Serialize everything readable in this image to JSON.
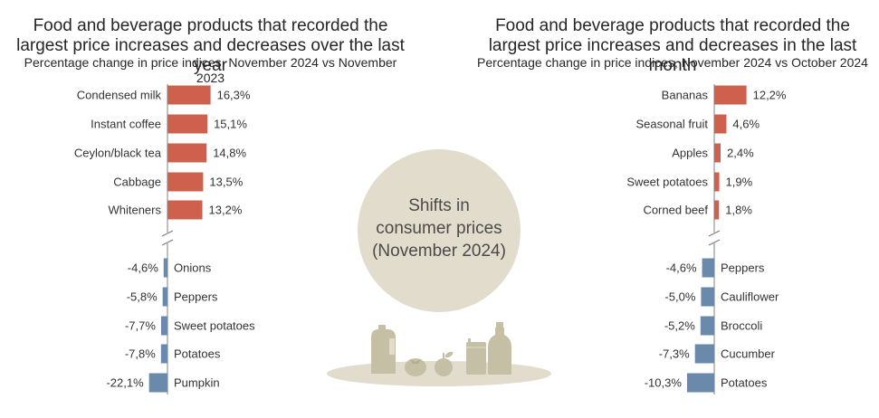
{
  "colors": {
    "increase": "#d0604e",
    "decrease": "#6b89aa",
    "circle": "#e1dccc",
    "illustration": "#c5bfa5",
    "axis": "#7f7f7f"
  },
  "center": {
    "circle_lines": [
      "Shifts in",
      "consumer prices",
      "(November 2024)"
    ],
    "icons": [
      "milk-jug-icon",
      "tomato-icon",
      "apple-icon",
      "can-icon",
      "bottle-icon"
    ]
  },
  "chart_data": [
    {
      "type": "bar",
      "orientation": "horizontal",
      "title": "Food and beverage products that recorded the largest price increases and decreases over the last year",
      "subtitle": "Percentage change in price indices, November 2024 vs November 2023",
      "axis_break": true,
      "increases": {
        "categories": [
          "Condensed milk",
          "Instant coffee",
          "Ceylon/black tea",
          "Cabbage",
          "Whiteners"
        ],
        "values": [
          16.3,
          15.1,
          14.8,
          13.5,
          13.2
        ],
        "labels": [
          "16,3%",
          "15,1%",
          "14,8%",
          "13,5%",
          "13,2%"
        ]
      },
      "decreases": {
        "categories": [
          "Onions",
          "Peppers",
          "Sweet potatoes",
          "Potatoes",
          "Pumpkin"
        ],
        "values": [
          -4.6,
          -5.8,
          -7.7,
          -7.8,
          -22.1
        ],
        "labels": [
          "-4,6%",
          "-5,8%",
          "-7,7%",
          "-7,8%",
          "-22,1%"
        ]
      }
    },
    {
      "type": "bar",
      "orientation": "horizontal",
      "title": "Food and beverage products that recorded the largest price increases and decreases in the last month",
      "subtitle": "Percentage change in price indices, November 2024 vs October 2024",
      "axis_break": true,
      "increases": {
        "categories": [
          "Bananas",
          "Seasonal fruit",
          "Apples",
          "Sweet potatoes",
          "Corned beef"
        ],
        "values": [
          12.2,
          4.6,
          2.4,
          1.9,
          1.8
        ],
        "labels": [
          "12,2%",
          "4,6%",
          "2,4%",
          "1,9%",
          "1,8%"
        ]
      },
      "decreases": {
        "categories": [
          "Peppers",
          "Cauliflower",
          "Broccoli",
          "Cucumber",
          "Potatoes"
        ],
        "values": [
          -4.6,
          -5.0,
          -5.2,
          -7.3,
          -10.3
        ],
        "labels": [
          "-4,6%",
          "-5,0%",
          "-5,2%",
          "-7,3%",
          "-10,3%"
        ]
      }
    }
  ]
}
